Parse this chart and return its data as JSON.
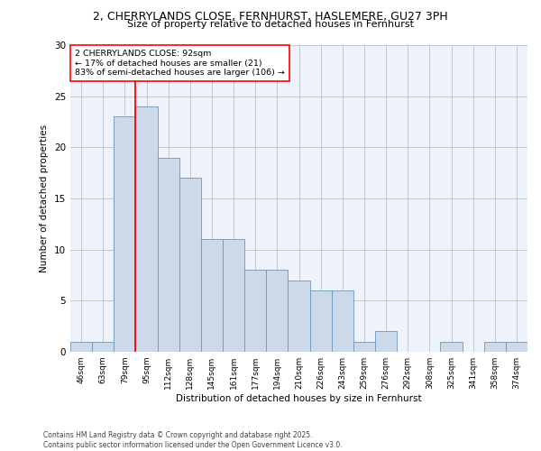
{
  "title_line1": "2, CHERRYLANDS CLOSE, FERNHURST, HASLEMERE, GU27 3PH",
  "title_line2": "Size of property relative to detached houses in Fernhurst",
  "xlabel": "Distribution of detached houses by size in Fernhurst",
  "ylabel": "Number of detached properties",
  "bar_labels": [
    "46sqm",
    "63sqm",
    "79sqm",
    "95sqm",
    "112sqm",
    "128sqm",
    "145sqm",
    "161sqm",
    "177sqm",
    "194sqm",
    "210sqm",
    "226sqm",
    "243sqm",
    "259sqm",
    "276sqm",
    "292sqm",
    "308sqm",
    "325sqm",
    "341sqm",
    "358sqm",
    "374sqm"
  ],
  "bar_values": [
    1,
    1,
    23,
    24,
    19,
    17,
    11,
    11,
    8,
    8,
    7,
    6,
    6,
    1,
    2,
    0,
    0,
    1,
    0,
    1,
    1
  ],
  "bar_color": "#ccd9e8",
  "bar_edge_color": "#6699bb",
  "annotation_line1": "2 CHERRYLANDS CLOSE: 92sqm",
  "annotation_line2": "← 17% of detached houses are smaller (21)",
  "annotation_line3": "83% of semi-detached houses are larger (106) →",
  "vline_position": 2.5,
  "background_color": "#eef2fb",
  "grid_color": "#c0c8d8",
  "footer_text": "Contains HM Land Registry data © Crown copyright and database right 2025.\nContains public sector information licensed under the Open Government Licence v3.0.",
  "ylim": [
    0,
    30
  ],
  "yticks": [
    0,
    5,
    10,
    15,
    20,
    25,
    30
  ]
}
